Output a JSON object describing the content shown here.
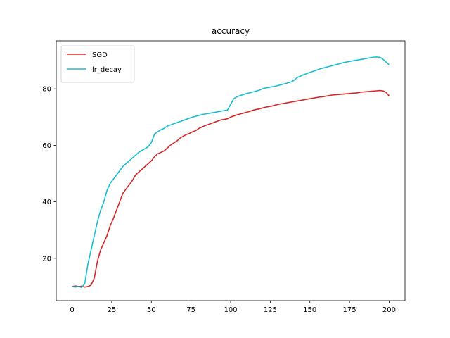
{
  "chart_data": {
    "type": "line",
    "title": "accuracy",
    "xlabel": "",
    "ylabel": "",
    "xlim": [
      -10,
      210
    ],
    "ylim": [
      5,
      97
    ],
    "xticks": [
      0,
      25,
      50,
      75,
      100,
      125,
      150,
      175,
      200
    ],
    "yticks": [
      20,
      40,
      60,
      80
    ],
    "grid": false,
    "legend_position": "upper-left",
    "series": [
      {
        "name": "SGD",
        "color": "#d62728",
        "x": [
          0,
          2,
          4,
          6,
          8,
          10,
          12,
          14,
          16,
          18,
          20,
          22,
          24,
          26,
          28,
          30,
          32,
          34,
          36,
          38,
          40,
          42,
          44,
          46,
          48,
          50,
          52,
          54,
          56,
          58,
          60,
          62,
          64,
          66,
          68,
          70,
          72,
          74,
          76,
          78,
          80,
          82,
          84,
          86,
          88,
          90,
          92,
          94,
          96,
          98,
          100,
          102,
          104,
          106,
          108,
          110,
          112,
          114,
          116,
          118,
          120,
          122,
          124,
          126,
          128,
          130,
          132,
          134,
          136,
          138,
          140,
          142,
          144,
          146,
          148,
          150,
          152,
          154,
          156,
          158,
          160,
          162,
          164,
          166,
          168,
          170,
          172,
          174,
          176,
          178,
          180,
          182,
          184,
          186,
          188,
          190,
          192,
          194,
          196,
          198,
          200
        ],
        "y": [
          10,
          10.2,
          10,
          10.1,
          9.8,
          10,
          10.5,
          13,
          19,
          23,
          25.5,
          28,
          31.5,
          34,
          37,
          40,
          43,
          44.5,
          46,
          47.5,
          49.5,
          50.5,
          51.5,
          52.5,
          53.5,
          54.5,
          56,
          57,
          57.5,
          58,
          59,
          60,
          60.8,
          61.5,
          62.5,
          63.2,
          63.8,
          64.2,
          64.8,
          65.2,
          66,
          66.5,
          67,
          67.4,
          67.8,
          68.2,
          68.6,
          69,
          69.2,
          69.4,
          70,
          70.4,
          70.8,
          71.1,
          71.4,
          71.7,
          72,
          72.4,
          72.7,
          72.9,
          73.2,
          73.5,
          73.7,
          73.9,
          74.2,
          74.5,
          74.7,
          74.9,
          75.1,
          75.3,
          75.5,
          75.7,
          75.9,
          76.1,
          76.3,
          76.5,
          76.7,
          76.9,
          77.1,
          77.2,
          77.4,
          77.6,
          77.8,
          77.9,
          78,
          78.1,
          78.2,
          78.3,
          78.4,
          78.5,
          78.6,
          78.8,
          78.9,
          79,
          79.1,
          79.2,
          79.3,
          79.4,
          79.3,
          78.8,
          77.5
        ]
      },
      {
        "name": "lr_decay",
        "color": "#17becf",
        "x": [
          0,
          2,
          4,
          6,
          8,
          10,
          12,
          14,
          16,
          18,
          20,
          22,
          24,
          26,
          28,
          30,
          32,
          34,
          36,
          38,
          40,
          42,
          44,
          46,
          48,
          50,
          52,
          54,
          56,
          58,
          60,
          62,
          64,
          66,
          68,
          70,
          72,
          74,
          76,
          78,
          80,
          82,
          84,
          86,
          88,
          90,
          92,
          94,
          96,
          98,
          100,
          102,
          104,
          106,
          108,
          110,
          112,
          114,
          116,
          118,
          120,
          122,
          124,
          126,
          128,
          130,
          132,
          134,
          136,
          138,
          140,
          142,
          144,
          146,
          148,
          150,
          152,
          154,
          156,
          158,
          160,
          162,
          164,
          166,
          168,
          170,
          172,
          174,
          176,
          178,
          180,
          182,
          184,
          186,
          188,
          190,
          192,
          194,
          196,
          198,
          200
        ],
        "y": [
          10,
          9.8,
          10,
          9.7,
          11,
          18,
          23,
          28,
          33,
          37,
          40,
          44,
          46.5,
          48,
          49.5,
          51,
          52.5,
          53.5,
          54.5,
          55.5,
          56.5,
          57.5,
          58.2,
          58.8,
          59.5,
          61,
          64,
          64.8,
          65.5,
          66,
          66.8,
          67.2,
          67.6,
          68,
          68.4,
          68.8,
          69.2,
          69.6,
          70,
          70.3,
          70.6,
          70.9,
          71.1,
          71.3,
          71.5,
          71.7,
          71.9,
          72.1,
          72.3,
          72.5,
          74.5,
          76.5,
          77.2,
          77.6,
          78,
          78.3,
          78.6,
          78.9,
          79.2,
          79.5,
          80,
          80.3,
          80.5,
          80.7,
          80.9,
          81.2,
          81.5,
          81.8,
          82.1,
          82.4,
          83,
          84,
          84.5,
          85,
          85.4,
          85.8,
          86.2,
          86.6,
          87,
          87.3,
          87.6,
          87.9,
          88.2,
          88.5,
          88.8,
          89.1,
          89.4,
          89.6,
          89.8,
          90,
          90.2,
          90.4,
          90.6,
          90.8,
          91,
          91.2,
          91.3,
          91.2,
          90.6,
          89.5,
          88.5
        ]
      }
    ]
  }
}
